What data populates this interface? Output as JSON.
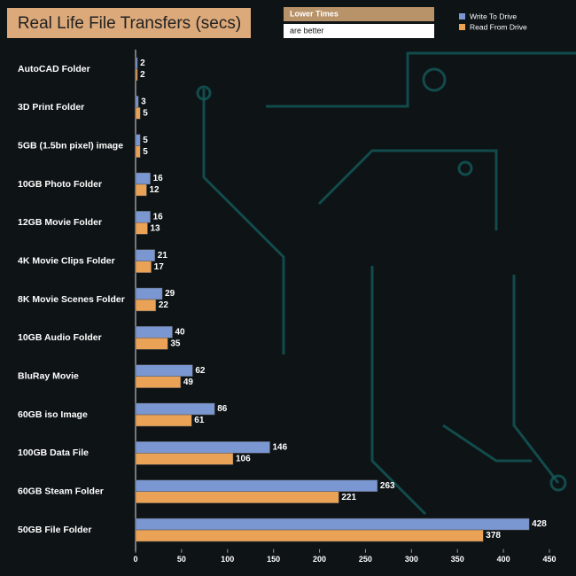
{
  "chart_data": {
    "type": "bar",
    "orientation": "horizontal",
    "title": "Real Life File Transfers (secs)",
    "annotations": [
      "Lower Times",
      "are better"
    ],
    "categories": [
      "AutoCAD Folder",
      "3D Print Folder",
      "5GB (1.5bn pixel) image",
      "10GB Photo Folder",
      "12GB Movie Folder",
      "4K Movie Clips Folder",
      "8K Movie Scenes Folder",
      "10GB Audio Folder",
      "BluRay Movie",
      "60GB iso Image",
      "100GB Data File",
      "60GB Steam Folder",
      "50GB File Folder"
    ],
    "series": [
      {
        "name": "Write To  Drive",
        "color": "#7b97d2",
        "values": [
          2,
          3,
          5,
          16,
          16,
          21,
          29,
          40,
          62,
          86,
          146,
          263,
          428
        ]
      },
      {
        "name": "Read From  Drive",
        "color": "#eaa257",
        "values": [
          2,
          5,
          5,
          12,
          13,
          17,
          22,
          35,
          49,
          61,
          106,
          221,
          378
        ]
      }
    ],
    "xlim": [
      0,
      450
    ],
    "xticks": [
      0,
      50,
      100,
      150,
      200,
      250,
      300,
      350,
      400,
      450
    ],
    "grid": false,
    "legend": "top-right"
  }
}
